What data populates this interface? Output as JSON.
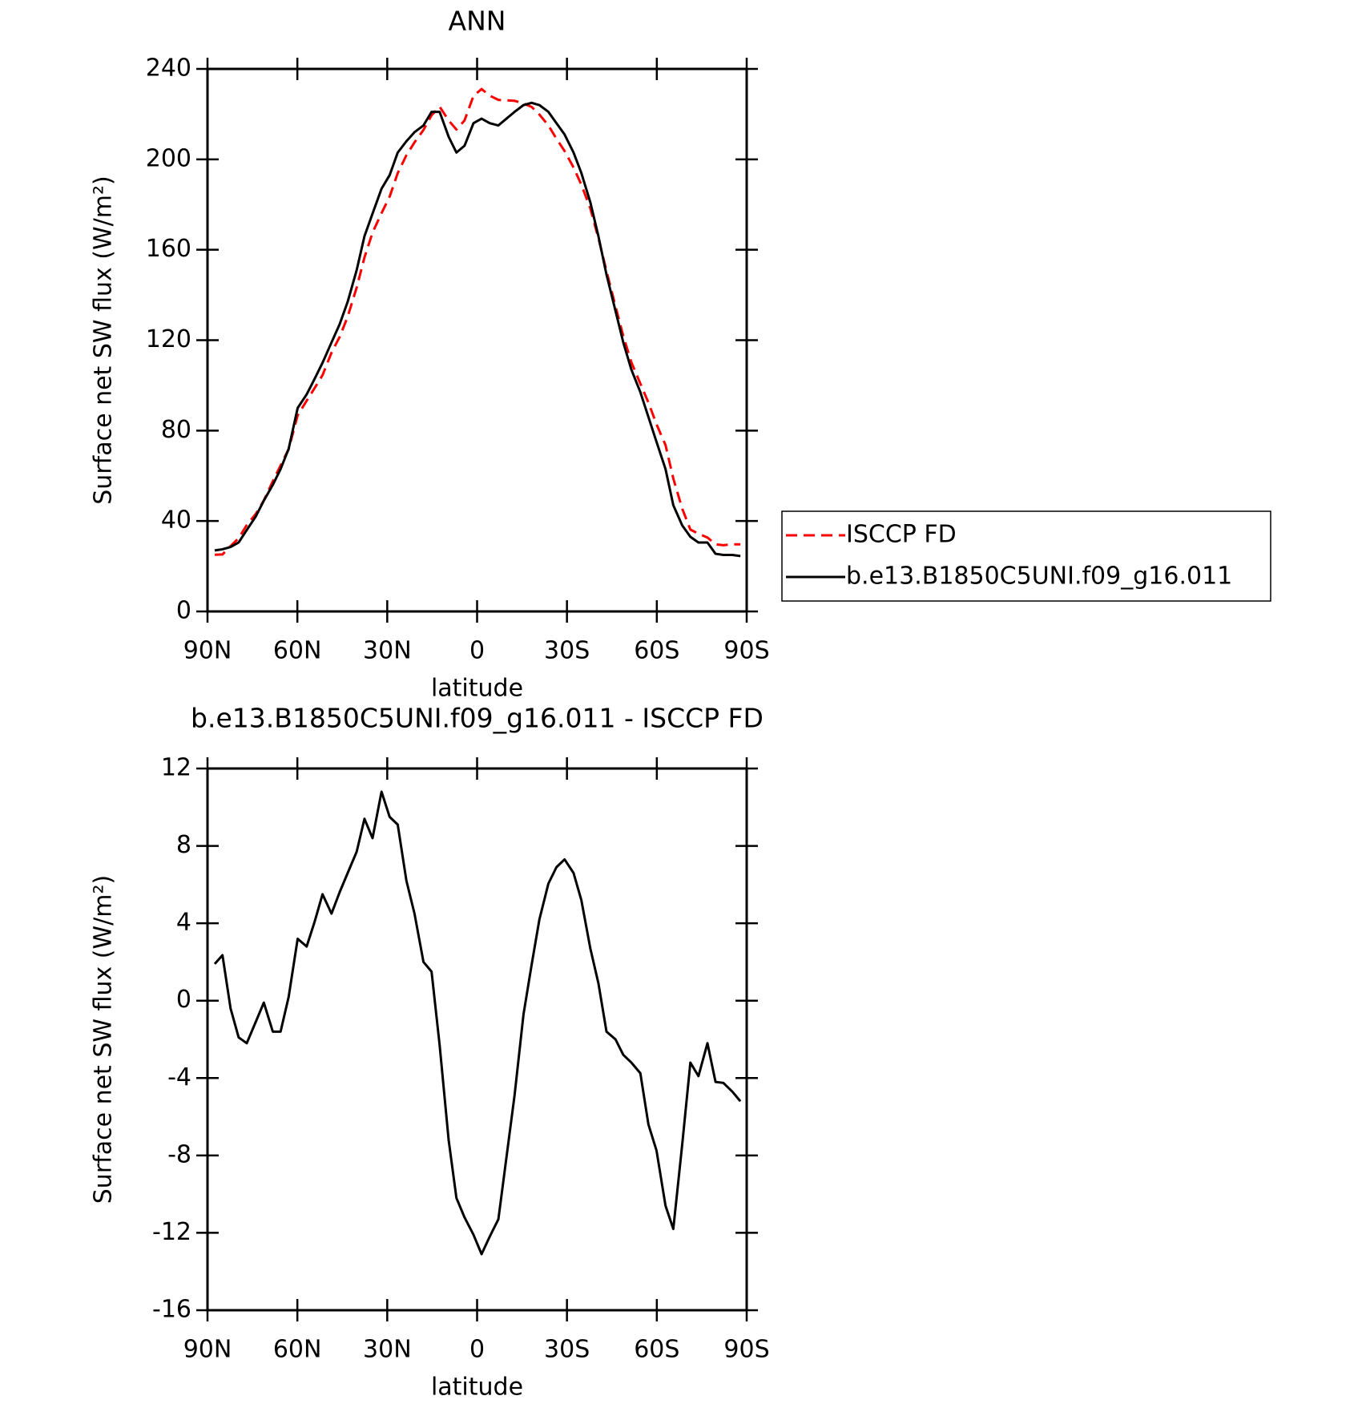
{
  "chart_data": [
    {
      "type": "line",
      "title": "ANN",
      "xlabel": "latitude",
      "ylabel": "Surface net SW flux (W/m²)",
      "x": [
        87.6,
        85,
        82.3,
        79.6,
        76.9,
        73.9,
        71.2,
        68.2,
        65.6,
        62.9,
        59.9,
        56.9,
        54.2,
        51.6,
        48.6,
        45.9,
        43.2,
        40.2,
        37.6,
        34.9,
        31.9,
        29.2,
        26.5,
        23.6,
        20.9,
        17.9,
        15.2,
        12.5,
        9.5,
        6.9,
        4.2,
        1.2,
        -1.5,
        -4.2,
        -7.1,
        -9.8,
        -12.5,
        -15.5,
        -18.2,
        -20.8,
        -23.8,
        -26.5,
        -29.2,
        -32.2,
        -34.8,
        -37.8,
        -40.5,
        -43.2,
        -46.2,
        -48.8,
        -51.5,
        -54.5,
        -57.2,
        -59.9,
        -62.9,
        -65.5,
        -68.5,
        -71.2,
        -73.9,
        -76.9,
        -79.6,
        -82.2,
        -85.2,
        -87.9
      ],
      "xlim": [
        90,
        -90
      ],
      "xticks": [
        {
          "value": 90,
          "label": "90N"
        },
        {
          "value": 60,
          "label": "60N"
        },
        {
          "value": 30,
          "label": "30N"
        },
        0,
        {
          "value": -30,
          "label": "30S"
        },
        {
          "value": -60,
          "label": "60S"
        },
        {
          "value": -90,
          "label": "90S"
        }
      ],
      "ylim": [
        0,
        240
      ],
      "yticks": [
        0,
        40,
        80,
        120,
        160,
        200,
        240
      ],
      "legend": true,
      "legend_loc": "right",
      "series": [
        {
          "name": "ISCCP FD",
          "color": "#ff0000",
          "dashed": true,
          "values": [
            25.1,
            25.2,
            28.9,
            32.4,
            38.2,
            43.1,
            49.1,
            57.6,
            64.6,
            71.8,
            86.8,
            93.2,
            98.9,
            104.5,
            114.5,
            121.4,
            130.4,
            143.3,
            156.6,
            167.6,
            176.2,
            183.5,
            193.9,
            201.8,
            207.5,
            213,
            219.5,
            223.3,
            217.2,
            213.2,
            217.2,
            228.1,
            231.1,
            228.2,
            226.3,
            226.1,
            225.9,
            224.7,
            223.2,
            219.8,
            215,
            209.1,
            203.7,
            196.4,
            188.8,
            178.3,
            165.1,
            150.6,
            135,
            121.8,
            110.2,
            100.8,
            92.4,
            82.8,
            73.6,
            58.8,
            45.4,
            36.2,
            34.4,
            32.7,
            29.7,
            29.3,
            29.7,
            29.7
          ]
        },
        {
          "name": "b.e13.B1850C5UNI.f09_g16.011",
          "color": "#000000",
          "dashed": false,
          "values": [
            27,
            27.5,
            28.5,
            30.5,
            36,
            42,
            49,
            56,
            63,
            72,
            90,
            96,
            103,
            110,
            119,
            127,
            137,
            151,
            166,
            176,
            187,
            193,
            203,
            208,
            212,
            215,
            221,
            221,
            210,
            203,
            206,
            216,
            218,
            216,
            215,
            218,
            221,
            224,
            225,
            224,
            221,
            216,
            211,
            203,
            194,
            181,
            166,
            149,
            133,
            119,
            107,
            97,
            86,
            75,
            63,
            47,
            38,
            33,
            30.5,
            30.5,
            25.5,
            25,
            25,
            24.5
          ]
        }
      ]
    },
    {
      "type": "line",
      "title": "b.e13.B1850C5UNI.f09_g16.011 - ISCCP FD",
      "xlabel": "latitude",
      "ylabel": "Surface net SW flux (W/m²)",
      "x": [
        87.6,
        85,
        82.3,
        79.6,
        76.9,
        73.9,
        71.2,
        68.2,
        65.6,
        62.9,
        59.9,
        56.9,
        54.2,
        51.6,
        48.6,
        45.9,
        43.2,
        40.2,
        37.6,
        34.9,
        31.9,
        29.2,
        26.5,
        23.6,
        20.9,
        17.9,
        15.2,
        12.5,
        9.5,
        6.9,
        4.2,
        1.2,
        -1.5,
        -4.2,
        -7.1,
        -9.8,
        -12.5,
        -15.5,
        -18.2,
        -20.8,
        -23.8,
        -26.5,
        -29.2,
        -32.2,
        -34.8,
        -37.8,
        -40.5,
        -43.2,
        -46.2,
        -48.8,
        -51.5,
        -54.5,
        -57.2,
        -59.9,
        -62.9,
        -65.5,
        -68.5,
        -71.2,
        -73.9,
        -76.9,
        -79.6,
        -82.2,
        -85.2,
        -87.9
      ],
      "xlim": [
        90,
        -90
      ],
      "xticks": [
        {
          "value": 90,
          "label": "90N"
        },
        {
          "value": 60,
          "label": "60N"
        },
        {
          "value": 30,
          "label": "30N"
        },
        0,
        {
          "value": -30,
          "label": "30S"
        },
        {
          "value": -60,
          "label": "60S"
        },
        {
          "value": -90,
          "label": "90S"
        }
      ],
      "ylim": [
        -16,
        12
      ],
      "yticks": [
        -16,
        -12,
        -8,
        -4,
        0,
        4,
        8,
        12
      ],
      "legend": false,
      "series": [
        {
          "color": "#000000",
          "dashed": false,
          "values": [
            1.9,
            2.35,
            -0.4,
            -1.9,
            -2.2,
            -1.1,
            -0.1,
            -1.6,
            -1.6,
            0.2,
            3.2,
            2.8,
            4.1,
            5.5,
            4.5,
            5.6,
            6.6,
            7.7,
            9.4,
            8.4,
            10.8,
            9.5,
            9.1,
            6.2,
            4.5,
            2.0,
            1.5,
            -2.3,
            -7.2,
            -10.2,
            -11.2,
            -12.1,
            -13.1,
            -12.2,
            -11.3,
            -8.1,
            -4.9,
            -0.7,
            1.85,
            4.2,
            6.05,
            6.9,
            7.3,
            6.6,
            5.2,
            2.7,
            0.9,
            -1.6,
            -2.0,
            -2.8,
            -3.2,
            -3.75,
            -6.4,
            -7.75,
            -10.6,
            -11.8,
            -7.4,
            -3.2,
            -3.9,
            -2.2,
            -4.2,
            -4.25,
            -4.7,
            -5.2
          ]
        }
      ]
    }
  ]
}
